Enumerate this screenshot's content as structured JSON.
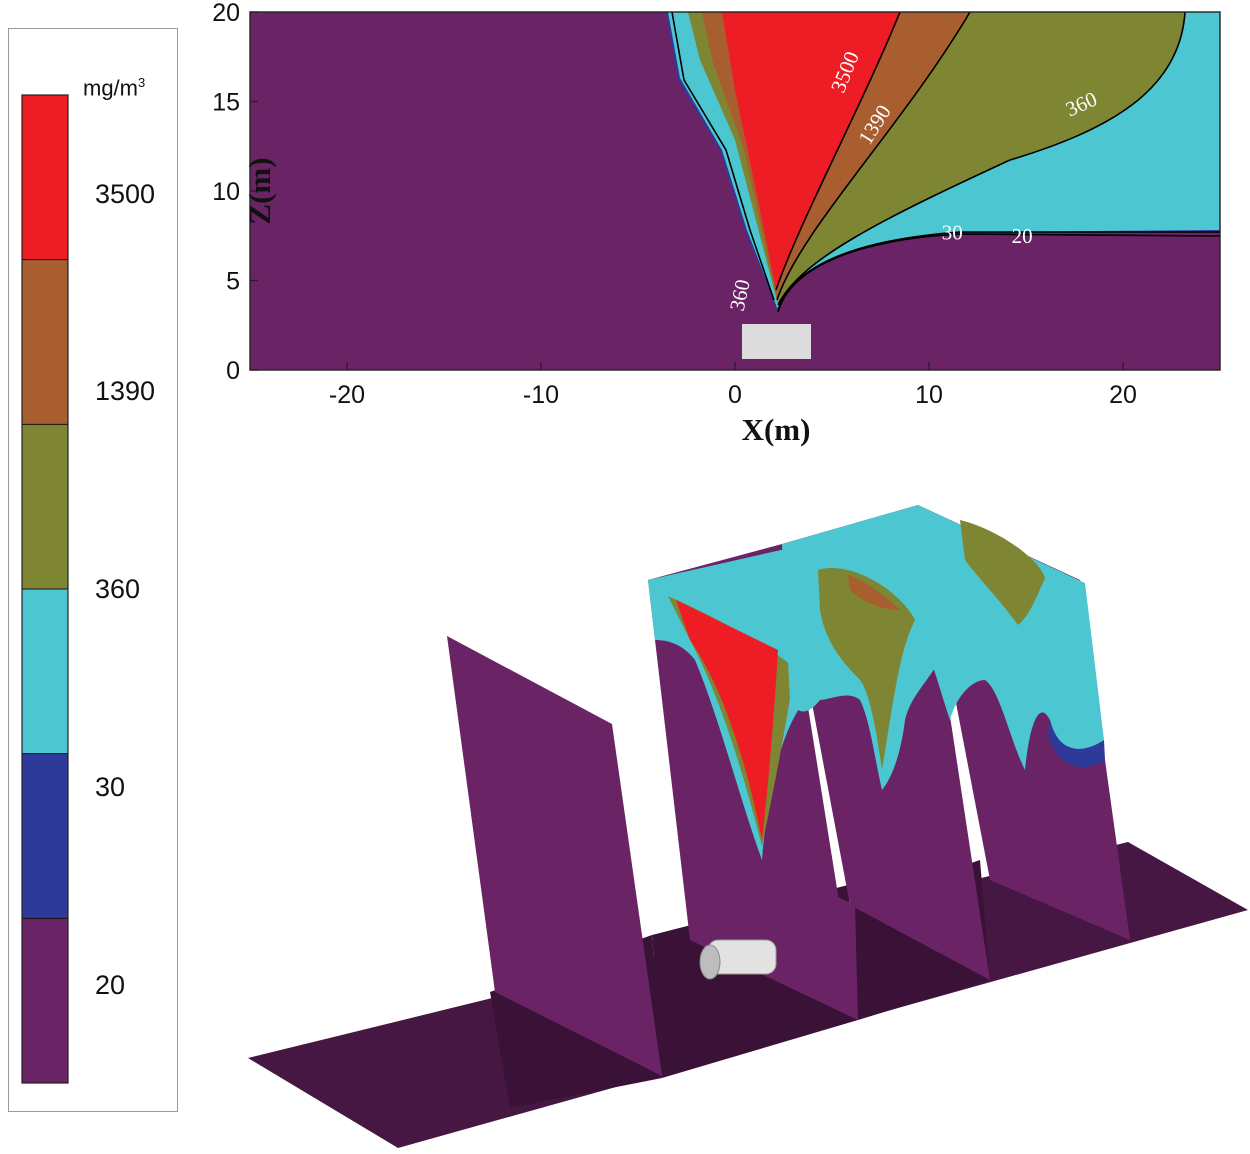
{
  "chart_data": [
    {
      "type": "legend",
      "unit": {
        "base": "mg/m",
        "exponent": "3"
      },
      "levels": [
        {
          "label": "3500",
          "color": "#ee1c24"
        },
        {
          "label": "1390",
          "color": "#a85e2e"
        },
        {
          "label": "360",
          "color": "#7e8633"
        },
        {
          "label": "30",
          "color": "#4cc7d2"
        },
        {
          "label": "20",
          "color": "#2e3a9a"
        },
        {
          "label": "",
          "color": "#6a2466"
        }
      ]
    },
    {
      "type": "heatmap",
      "subtype": "2d-contour",
      "xlabel": "X(m)",
      "ylabel": "Z(m)",
      "xlim": [
        -25,
        25
      ],
      "ylim": [
        0,
        20
      ],
      "xticks": [
        -20,
        -10,
        0,
        10,
        20
      ],
      "yticks": [
        0,
        5,
        10,
        15,
        20
      ],
      "contour_labels": [
        {
          "text": "3500",
          "x": 6.0,
          "y": 16.5
        },
        {
          "text": "1390",
          "x": 7.5,
          "y": 13.5
        },
        {
          "text": "360",
          "x": 18.0,
          "y": 14.5
        },
        {
          "text": "360",
          "x": 0.6,
          "y": 4.1
        },
        {
          "text": "30",
          "x": 11.2,
          "y": 7.3
        },
        {
          "text": "20",
          "x": 14.8,
          "y": 7.1
        }
      ],
      "source_box": {
        "x": [
          -2,
          2
        ],
        "z": [
          0.5,
          2.5
        ]
      }
    },
    {
      "type": "heatmap",
      "subtype": "3d-slices",
      "slices": 4
    }
  ]
}
